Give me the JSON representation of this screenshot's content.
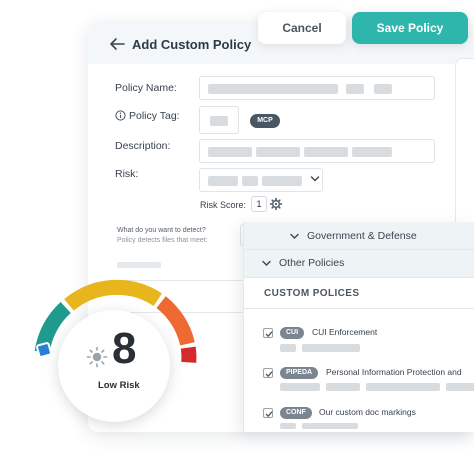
{
  "header": {
    "title": "Add Custom Policy",
    "cancel_label": "Cancel",
    "save_label": "Save Policy"
  },
  "form": {
    "policy_name_label": "Policy Name:",
    "policy_tag_label": "Policy Tag:",
    "tag_badge": "MCP",
    "description_label": "Description:",
    "risk_label": "Risk:",
    "risk_score_label": "Risk Score:",
    "risk_score_value": "1",
    "detect_question": "What do you want to detect?",
    "detect_hint": "Policy detects files that meet:"
  },
  "dropdown": {
    "groups": [
      {
        "label": "Government & Defense"
      },
      {
        "label": "Other Policies"
      }
    ],
    "section_title": "CUSTOM POLICES",
    "policies": [
      {
        "tag": "CUI",
        "name": "CUI Enforcement",
        "checked": true
      },
      {
        "tag": "PIPEDA",
        "name": "Personal Information Protection and",
        "checked": true
      },
      {
        "tag": "CONF",
        "name": "Our custom doc markings",
        "checked": true
      }
    ]
  },
  "gauge": {
    "value": "8",
    "label": "Low Risk",
    "colors": {
      "blue": "#2a7fd4",
      "teal": "#1f9b8e",
      "yellow": "#e8b51c",
      "orange": "#ee6a32",
      "red": "#d42a2a"
    }
  },
  "icons": {
    "back": "arrow-left-icon",
    "info": "info-icon",
    "chevron": "chevron-down-icon",
    "gear": "gear-icon",
    "sun": "sun-icon",
    "check": "check-icon"
  }
}
